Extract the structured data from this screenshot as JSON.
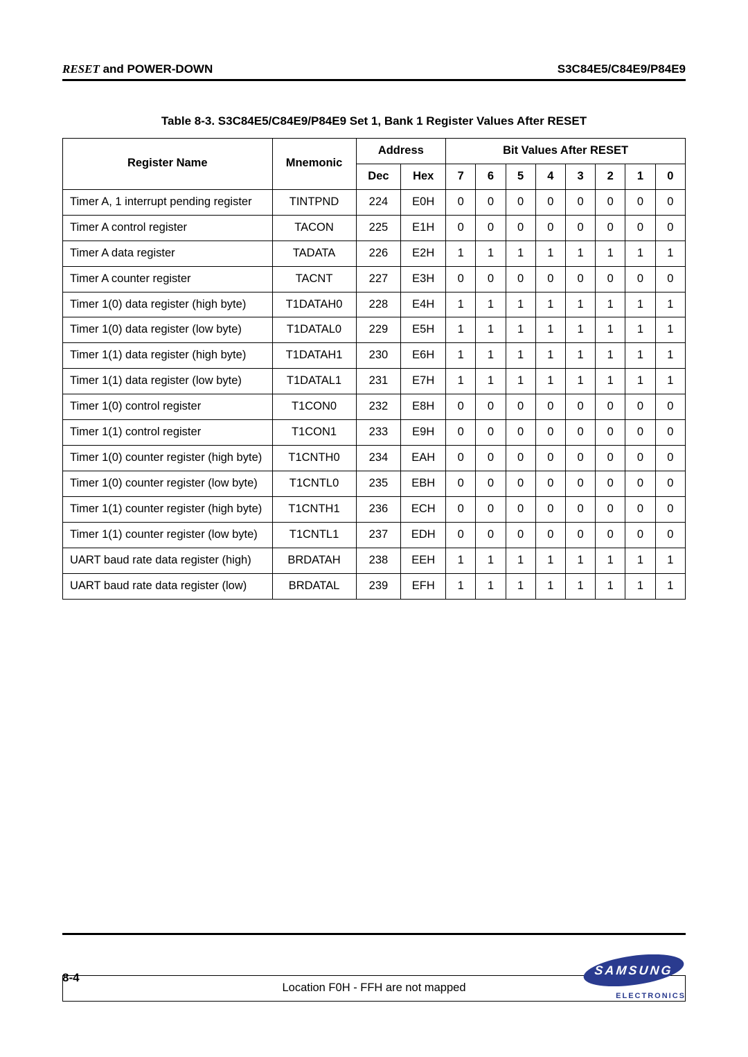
{
  "header": {
    "left_reset": "RESET",
    "left_rest": " and POWER-DOWN",
    "right": "S3C84E5/C84E9/P84E9"
  },
  "table": {
    "caption": "Table 8-3. S3C84E5/C84E9/P84E9 Set 1, Bank 1 Register Values After RESET",
    "col_register_name": "Register Name",
    "col_mnemonic": "Mnemonic",
    "col_address": "Address",
    "col_bit_values": "Bit Values After RESET",
    "sub_dec": "Dec",
    "sub_hex": "Hex",
    "bit_labels": [
      "7",
      "6",
      "5",
      "4",
      "3",
      "2",
      "1",
      "0"
    ],
    "rows": [
      {
        "name": "Timer A, 1 interrupt pending register",
        "mn": "TINTPND",
        "dec": "224",
        "hex": "E0H",
        "bits": [
          "0",
          "0",
          "0",
          "0",
          "0",
          "0",
          "0",
          "0"
        ]
      },
      {
        "name": "Timer A control register",
        "mn": "TACON",
        "dec": "225",
        "hex": "E1H",
        "bits": [
          "0",
          "0",
          "0",
          "0",
          "0",
          "0",
          "0",
          "0"
        ]
      },
      {
        "name": "Timer A data register",
        "mn": "TADATA",
        "dec": "226",
        "hex": "E2H",
        "bits": [
          "1",
          "1",
          "1",
          "1",
          "1",
          "1",
          "1",
          "1"
        ]
      },
      {
        "name": "Timer A counter register",
        "mn": "TACNT",
        "dec": "227",
        "hex": "E3H",
        "bits": [
          "0",
          "0",
          "0",
          "0",
          "0",
          "0",
          "0",
          "0"
        ]
      },
      {
        "name": "Timer 1(0) data register (high byte)",
        "mn": "T1DATAH0",
        "dec": "228",
        "hex": "E4H",
        "bits": [
          "1",
          "1",
          "1",
          "1",
          "1",
          "1",
          "1",
          "1"
        ]
      },
      {
        "name": "Timer 1(0) data register (low byte)",
        "mn": "T1DATAL0",
        "dec": "229",
        "hex": "E5H",
        "bits": [
          "1",
          "1",
          "1",
          "1",
          "1",
          "1",
          "1",
          "1"
        ]
      },
      {
        "name": "Timer 1(1) data register (high byte)",
        "mn": "T1DATAH1",
        "dec": "230",
        "hex": "E6H",
        "bits": [
          "1",
          "1",
          "1",
          "1",
          "1",
          "1",
          "1",
          "1"
        ]
      },
      {
        "name": "Timer 1(1) data register (low byte)",
        "mn": "T1DATAL1",
        "dec": "231",
        "hex": "E7H",
        "bits": [
          "1",
          "1",
          "1",
          "1",
          "1",
          "1",
          "1",
          "1"
        ]
      },
      {
        "name": "Timer 1(0) control register",
        "mn": "T1CON0",
        "dec": "232",
        "hex": "E8H",
        "bits": [
          "0",
          "0",
          "0",
          "0",
          "0",
          "0",
          "0",
          "0"
        ]
      },
      {
        "name": "Timer 1(1) control register",
        "mn": "T1CON1",
        "dec": "233",
        "hex": "E9H",
        "bits": [
          "0",
          "0",
          "0",
          "0",
          "0",
          "0",
          "0",
          "0"
        ]
      },
      {
        "name": "Timer 1(0) counter register (high byte)",
        "mn": "T1CNTH0",
        "dec": "234",
        "hex": "EAH",
        "bits": [
          "0",
          "0",
          "0",
          "0",
          "0",
          "0",
          "0",
          "0"
        ]
      },
      {
        "name": "Timer 1(0) counter register (low byte)",
        "mn": "T1CNTL0",
        "dec": "235",
        "hex": "EBH",
        "bits": [
          "0",
          "0",
          "0",
          "0",
          "0",
          "0",
          "0",
          "0"
        ]
      },
      {
        "name": "Timer 1(1) counter register (high byte)",
        "mn": "T1CNTH1",
        "dec": "236",
        "hex": "ECH",
        "bits": [
          "0",
          "0",
          "0",
          "0",
          "0",
          "0",
          "0",
          "0"
        ]
      },
      {
        "name": "Timer 1(1) counter register (low byte)",
        "mn": "T1CNTL1",
        "dec": "237",
        "hex": "EDH",
        "bits": [
          "0",
          "0",
          "0",
          "0",
          "0",
          "0",
          "0",
          "0"
        ]
      },
      {
        "name": "UART baud rate data register (high)",
        "mn": "BRDATAH",
        "dec": "238",
        "hex": "EEH",
        "bits": [
          "1",
          "1",
          "1",
          "1",
          "1",
          "1",
          "1",
          "1"
        ]
      },
      {
        "name": "UART baud rate data register (low)",
        "mn": "BRDATAL",
        "dec": "239",
        "hex": "EFH",
        "bits": [
          "1",
          "1",
          "1",
          "1",
          "1",
          "1",
          "1",
          "1"
        ]
      }
    ],
    "footer_note": "Location F0H - FFH are not mapped"
  },
  "footer": {
    "page_num": "8-4",
    "logo_text": "SAMSUNG",
    "logo_sub": "ELECTRONICS",
    "logo_bg": "#2a3b8f",
    "logo_text_color": "#ffffff"
  }
}
